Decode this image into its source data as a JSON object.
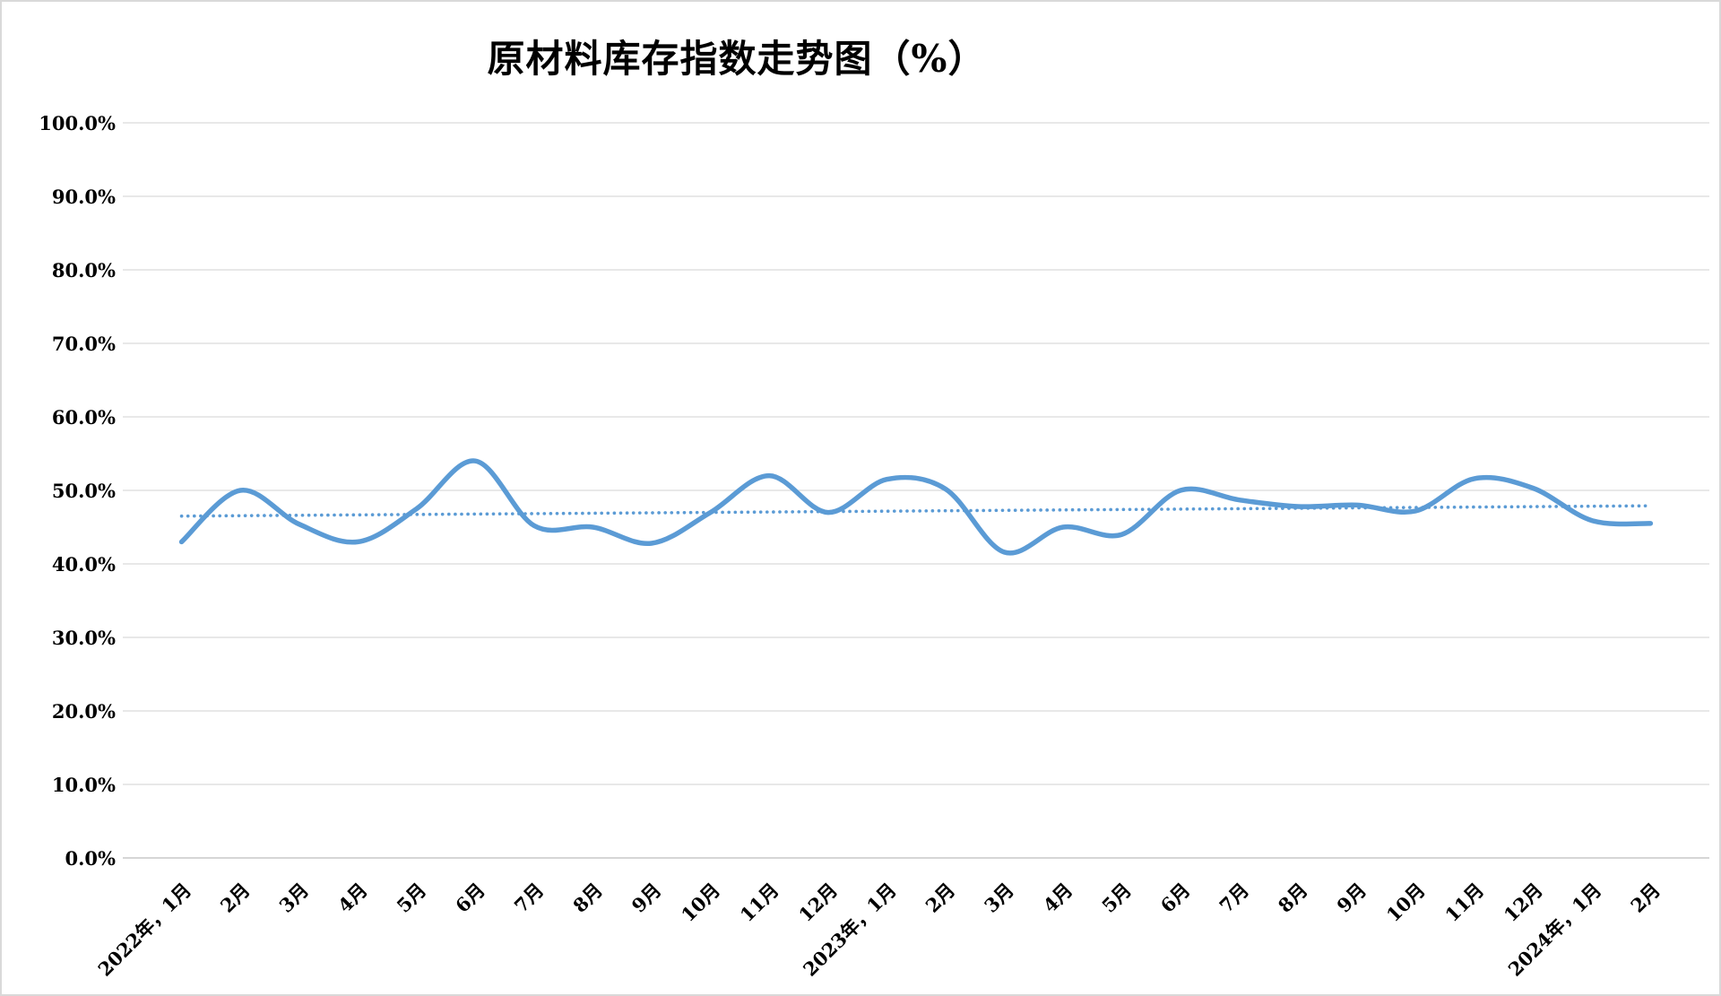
{
  "chart_data": {
    "type": "line",
    "title": "原材料库存指数走势图（%）",
    "categories": [
      "2022年，1月",
      "2月",
      "3月",
      "4月",
      "5月",
      "6月",
      "7月",
      "8月",
      "9月",
      "10月",
      "11月",
      "12月",
      "2023年，1月",
      "2月",
      "3月",
      "4月",
      "5月",
      "6月",
      "7月",
      "8月",
      "9月",
      "10月",
      "11月",
      "12月",
      "2024年，1月",
      "2月"
    ],
    "series": [
      {
        "name": "原材料库存指数",
        "style": "smooth-line",
        "color": "#5B9BD5",
        "values": [
          43.0,
          50.0,
          45.4,
          43.0,
          47.5,
          54.0,
          45.2,
          45.0,
          42.8,
          47.0,
          52.0,
          47.0,
          51.5,
          50.2,
          41.6,
          45.0,
          44.0,
          50.0,
          48.7,
          47.8,
          48.0,
          47.2,
          51.6,
          50.3,
          45.9,
          45.5
        ]
      },
      {
        "name": "trendline",
        "style": "dotted-linear-trendline",
        "color": "#5B9BD5",
        "trend_start": 46.5,
        "trend_end": 47.9
      }
    ],
    "xlabel": "",
    "ylabel": "",
    "ylim": [
      0,
      100
    ],
    "ytick_step": 10,
    "ytick_labels": [
      "0.0%",
      "10.0%",
      "20.0%",
      "30.0%",
      "40.0%",
      "50.0%",
      "60.0%",
      "70.0%",
      "80.0%",
      "90.0%",
      "100.0%"
    ],
    "grid": "horizontal-only",
    "legend": "none",
    "gridline_color": "#d9d9d9",
    "axis_line_color": "#c9c9c9",
    "text_color": "#000000",
    "background_color": "#ffffff"
  }
}
